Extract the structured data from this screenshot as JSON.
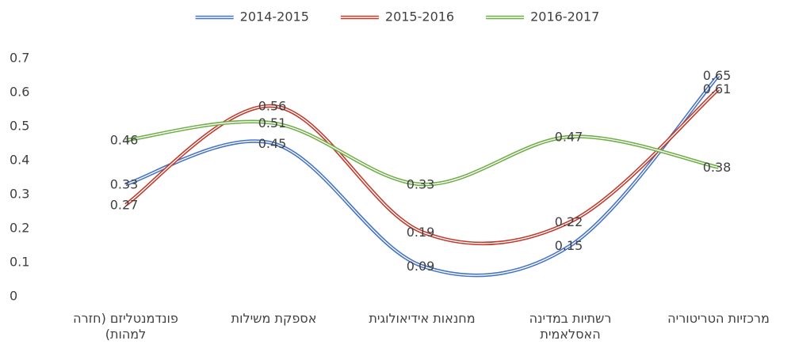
{
  "chart_data": {
    "type": "line",
    "categories": [
      "פונדמנטליזם (חזרה למהות)",
      "אספקת משילות",
      "מחנאות אידיאולוגית",
      "רשתיות במדינה האסלאמית",
      "מרכזיות הטריטוריה"
    ],
    "series": [
      {
        "name": "2014-2015",
        "color": "#4472c4",
        "values": [
          0.33,
          0.45,
          0.09,
          0.15,
          0.65
        ]
      },
      {
        "name": "2015-2016",
        "color": "#c0392b",
        "values": [
          0.27,
          0.56,
          0.19,
          0.22,
          0.61
        ]
      },
      {
        "name": "2016-2017",
        "color": "#70ad47",
        "values": [
          0.46,
          0.51,
          0.33,
          0.47,
          0.38
        ]
      }
    ],
    "ylim": [
      0,
      0.7
    ],
    "yticks": [
      0,
      0.1,
      0.2,
      0.3,
      0.4,
      0.5,
      0.6,
      0.7
    ],
    "grid": false,
    "legend": "top",
    "smooth": true,
    "data_labels": true
  }
}
